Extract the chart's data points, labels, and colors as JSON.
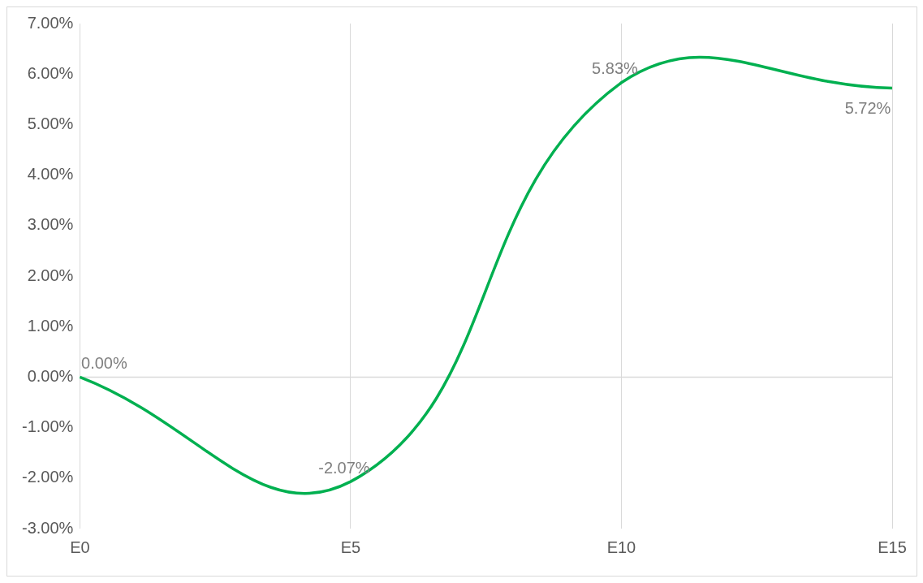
{
  "chart_data": {
    "type": "line",
    "categories": [
      "E0",
      "E5",
      "E10",
      "E15"
    ],
    "series": [
      {
        "color": "#00b050",
        "values": [
          0,
          -2.07,
          5.83,
          5.72
        ],
        "value_labels": [
          "0.00%",
          "-2.07%",
          "5.83%",
          "5.72%"
        ]
      }
    ],
    "ylim": [
      -3,
      7
    ],
    "yticks": [
      {
        "value": -3,
        "label": "-3.00%"
      },
      {
        "value": -2,
        "label": "-2.00%"
      },
      {
        "value": -1,
        "label": "-1.00%"
      },
      {
        "value": 0,
        "label": "0.00%"
      },
      {
        "value": 1,
        "label": "1.00%"
      },
      {
        "value": 2,
        "label": "2.00%"
      },
      {
        "value": 3,
        "label": "3.00%"
      },
      {
        "value": 4,
        "label": "4.00%"
      },
      {
        "value": 5,
        "label": "5.00%"
      },
      {
        "value": 6,
        "label": "6.00%"
      },
      {
        "value": 7,
        "label": "7.00%"
      }
    ],
    "grid": "x",
    "ref_lines": [
      {
        "axis": "y",
        "value": 0,
        "color": "#d9d9d9"
      }
    ],
    "legend": false,
    "marker": "none",
    "line_style": "solid"
  }
}
